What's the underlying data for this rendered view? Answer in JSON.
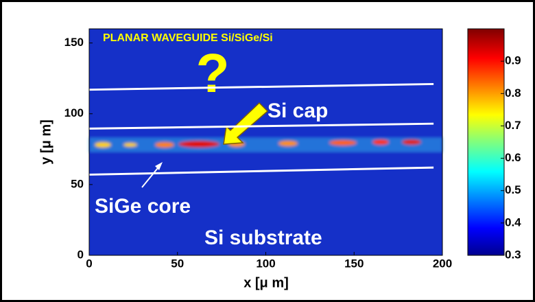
{
  "chart_data": {
    "type": "field",
    "title": "PLANAR WAVEGUIDE Si/SiGe/Si",
    "xlabel": "x [μ m]",
    "ylabel": "y [μ m]",
    "xlim": [
      0,
      200
    ],
    "ylim": [
      0,
      160
    ],
    "xticks": [
      0,
      50,
      100,
      150,
      200
    ],
    "yticks": [
      0,
      50,
      100,
      150
    ],
    "clim": [
      0.3,
      1.0
    ],
    "cticks": [
      0.3,
      0.4,
      0.5,
      0.6,
      0.7,
      0.8,
      0.9
    ],
    "lines": [
      {
        "color": "#ffffff",
        "x": [
          0,
          195
        ],
        "y": [
          117,
          121
        ]
      },
      {
        "color": "#ffffff",
        "x": [
          0,
          195
        ],
        "y": [
          89.5,
          93
        ]
      },
      {
        "color": "#ffffff",
        "x": [
          0,
          195
        ],
        "y": [
          57,
          62
        ]
      }
    ],
    "annotations": [
      "?",
      "Si cap",
      "SiGe core",
      "Si substrate"
    ]
  }
}
